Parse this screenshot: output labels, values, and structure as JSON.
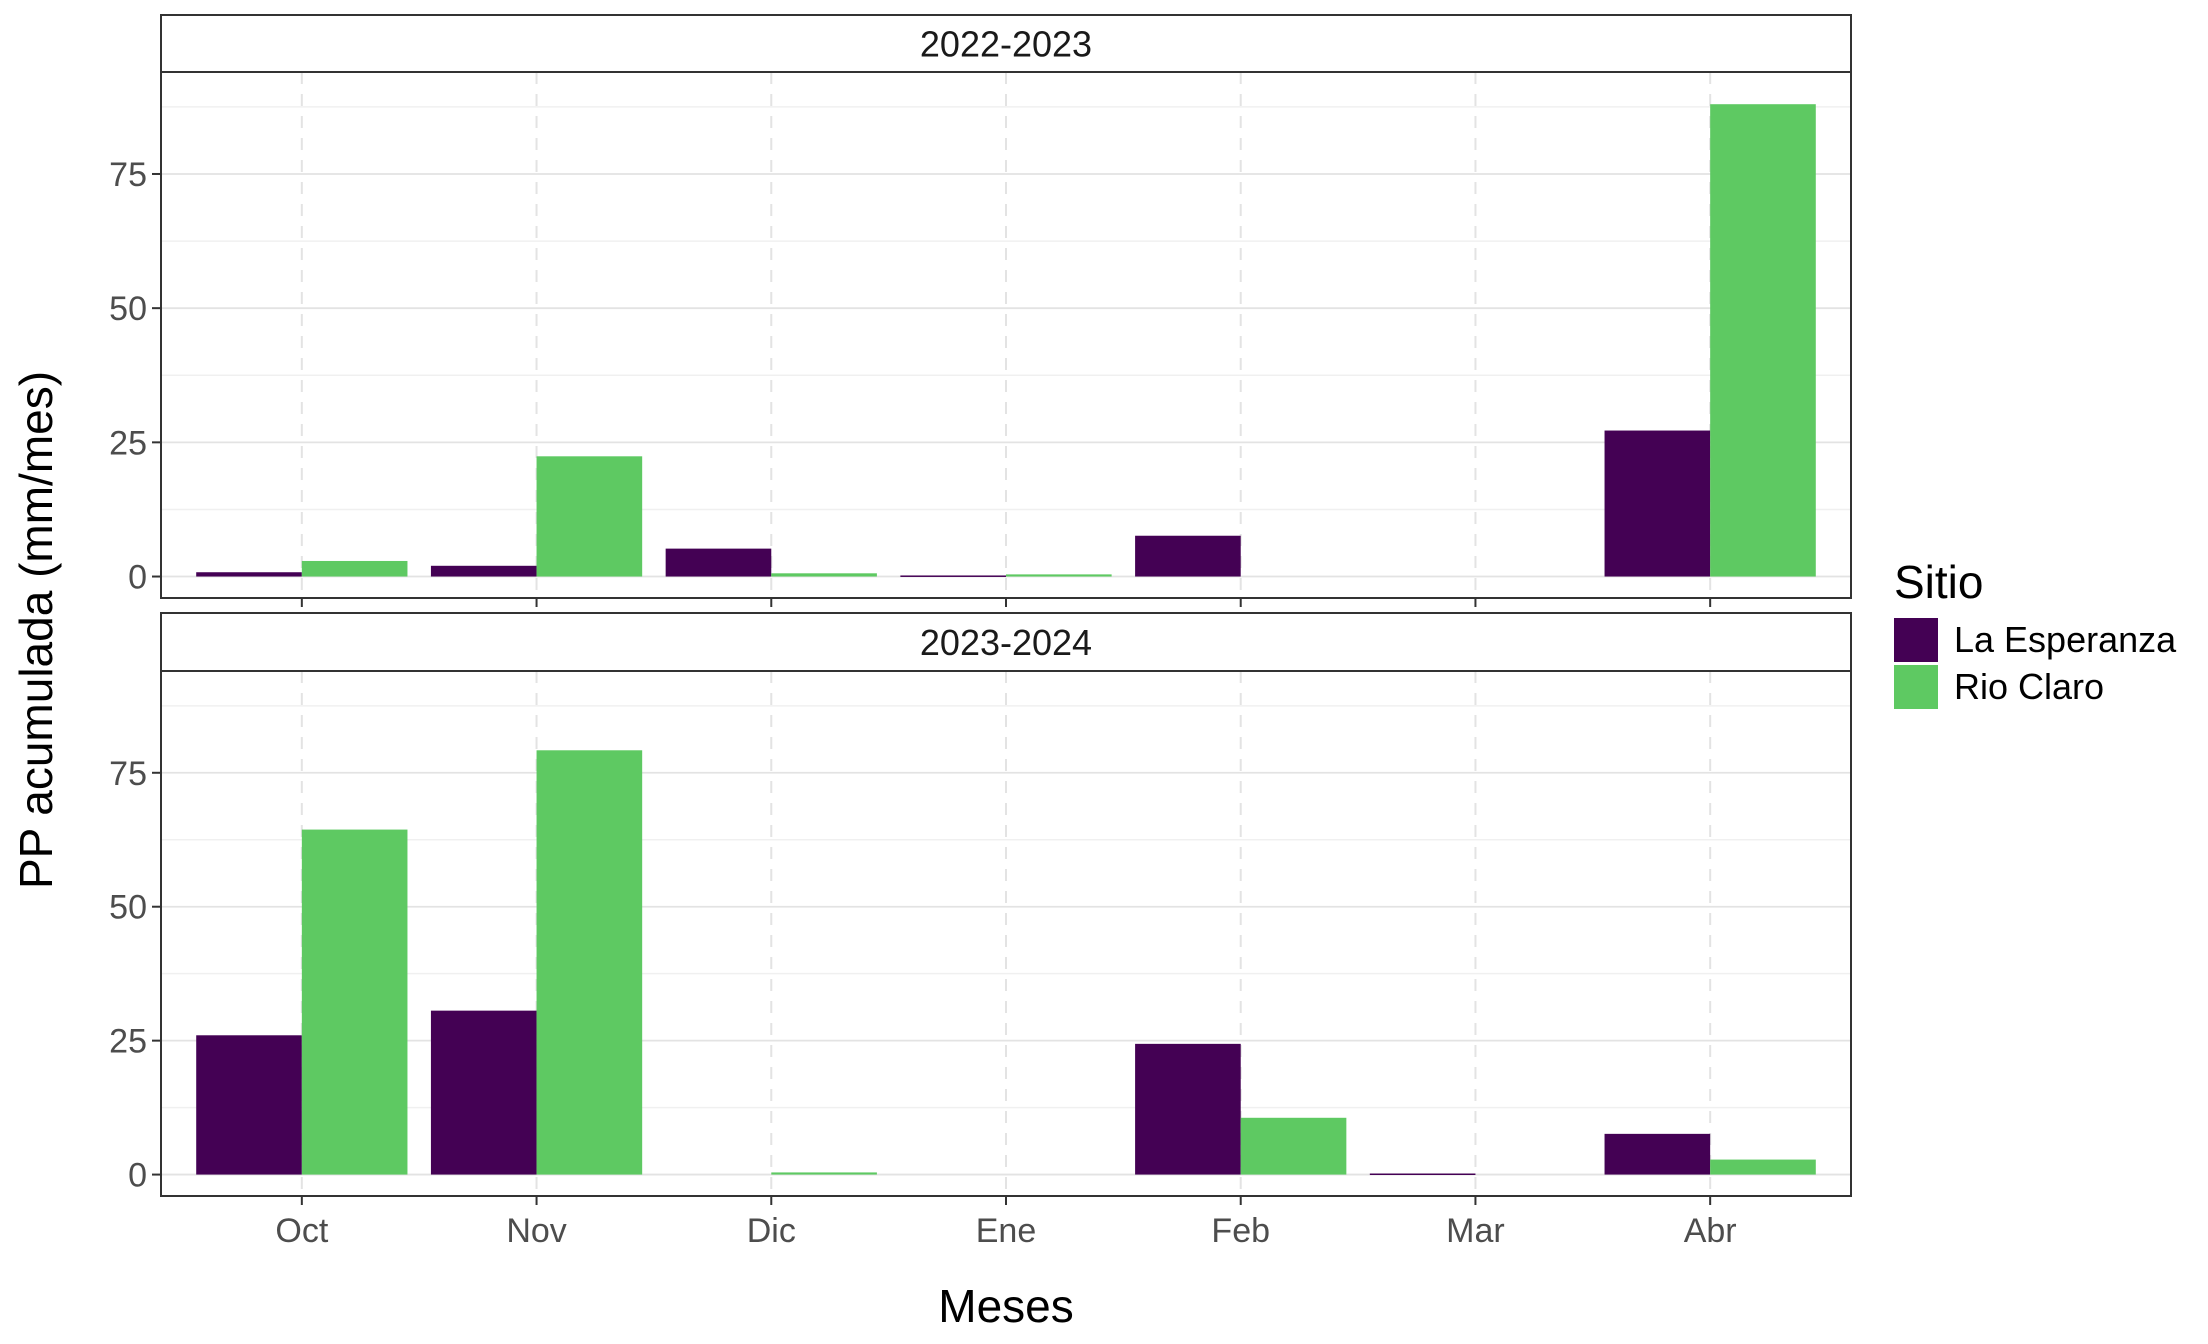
{
  "chart_data": {
    "type": "bar",
    "xlabel": "Meses",
    "ylabel": "PP acumulada (mm/mes)",
    "ylim": [
      -4,
      94
    ],
    "yticks": [
      0,
      25,
      50,
      75
    ],
    "categories": [
      "Oct",
      "Nov",
      "Dic",
      "Ene",
      "Feb",
      "Mar",
      "Abr"
    ],
    "legend": {
      "title": "Sitio",
      "position": "right",
      "entries": [
        "La Esperanza",
        "Rio Claro"
      ]
    },
    "colors": {
      "La Esperanza": "#440154",
      "Rio Claro": "#5ec962"
    },
    "panels": [
      {
        "label": "2022-2023",
        "series": [
          {
            "name": "La Esperanza",
            "values": [
              0.8,
              2.0,
              5.2,
              0.2,
              7.6,
              null,
              27.2
            ]
          },
          {
            "name": "Rio Claro",
            "values": [
              2.9,
              22.4,
              0.6,
              0.4,
              null,
              null,
              88.0
            ]
          }
        ]
      },
      {
        "label": "2023-2024",
        "series": [
          {
            "name": "La Esperanza",
            "values": [
              26.0,
              30.6,
              null,
              null,
              24.4,
              0.2,
              7.6
            ]
          },
          {
            "name": "Rio Claro",
            "values": [
              64.4,
              79.2,
              0.4,
              null,
              10.6,
              null,
              2.8
            ]
          }
        ]
      }
    ],
    "grid": true
  }
}
